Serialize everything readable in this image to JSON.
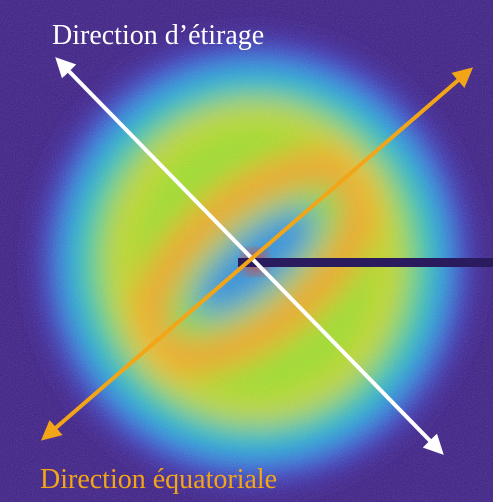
{
  "annotations": {
    "stretch_direction": "Direction d’étirage",
    "equatorial_direction": "Direction équatoriale"
  }
}
